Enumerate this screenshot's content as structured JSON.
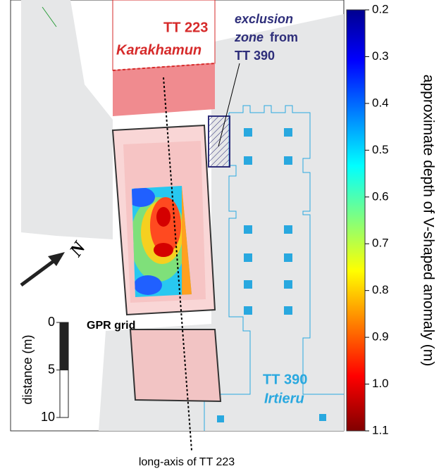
{
  "map": {
    "tomb_223": {
      "name": "TT 223",
      "owner": "Karakhamun"
    },
    "exclusion_zone": {
      "lines": [
        "exclusion",
        "zone",
        "from",
        "TT 390"
      ]
    },
    "tomb_390": {
      "name": "TT 390",
      "owner": "Irtieru"
    },
    "gpr_label": "GPR grid",
    "north": "N",
    "axis_label": "long-axis of TT 223",
    "scale_bar": {
      "label": "distance (m)",
      "range": [
        0,
        10
      ],
      "ticks": [
        0,
        5,
        10
      ]
    },
    "colorbar": {
      "label": "approximate depth of V-shaped anomaly (m)",
      "range": [
        0.2,
        1.1
      ],
      "ticks": [
        0.2,
        0.3,
        0.4,
        0.5,
        0.6,
        0.7,
        0.8,
        0.9,
        {
          "value": 1,
          "label": "1.0"
        },
        1.1
      ]
    }
  }
}
